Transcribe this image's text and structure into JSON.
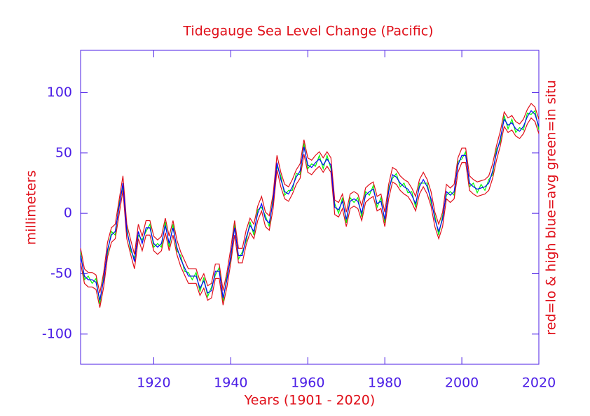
{
  "chart_data": {
    "type": "line",
    "title": "Tidegauge Sea Level Change (Pacific)",
    "x_label": "Years (1901 - 2020)",
    "y_label": "millimeters",
    "y2_label": "red=lo & high  blue=avg  green=in situ",
    "xlim": [
      1901,
      2020
    ],
    "xticks": [
      1920,
      1940,
      1960,
      1980,
      2000,
      2020
    ],
    "ylim": [
      -125,
      135
    ],
    "yticks": [
      -100,
      -50,
      0,
      50,
      100
    ],
    "x": [
      1901,
      1902,
      1903,
      1904,
      1905,
      1906,
      1907,
      1908,
      1909,
      1910,
      1911,
      1912,
      1913,
      1914,
      1915,
      1916,
      1917,
      1918,
      1919,
      1920,
      1921,
      1922,
      1923,
      1924,
      1925,
      1926,
      1927,
      1928,
      1929,
      1930,
      1931,
      1932,
      1933,
      1934,
      1935,
      1936,
      1937,
      1938,
      1939,
      1940,
      1941,
      1942,
      1943,
      1944,
      1945,
      1946,
      1947,
      1948,
      1949,
      1950,
      1951,
      1952,
      1953,
      1954,
      1955,
      1956,
      1957,
      1958,
      1959,
      1960,
      1961,
      1962,
      1963,
      1964,
      1965,
      1966,
      1967,
      1968,
      1969,
      1970,
      1971,
      1972,
      1973,
      1974,
      1975,
      1976,
      1977,
      1978,
      1979,
      1980,
      1981,
      1982,
      1983,
      1984,
      1985,
      1986,
      1987,
      1988,
      1989,
      1990,
      1991,
      1992,
      1993,
      1994,
      1995,
      1996,
      1997,
      1998,
      1999,
      2000,
      2001,
      2002,
      2003,
      2004,
      2005,
      2006,
      2007,
      2008,
      2009,
      2010,
      2011,
      2012,
      2013,
      2014,
      2015,
      2016,
      2017,
      2018,
      2019,
      2020
    ],
    "series": [
      {
        "color": "#00ff00",
        "values": [
          -32,
          -55,
          -52,
          -58,
          -54,
          -75,
          -52,
          -33,
          -15,
          -18,
          8,
          22,
          -12,
          -31,
          -37,
          -18,
          -22,
          -15,
          -9,
          -28,
          -25,
          -28,
          -7,
          -28,
          -9,
          -31,
          -35,
          -48,
          -49,
          -55,
          -49,
          -65,
          -53,
          -69,
          -61,
          -51,
          -45,
          -73,
          -52,
          -38,
          -9,
          -38,
          -32,
          -23,
          -7,
          -18,
          3,
          5,
          -2,
          -11,
          13,
          39,
          31,
          15,
          19,
          19,
          33,
          32,
          58,
          37,
          41,
          39,
          48,
          37,
          48,
          37,
          8,
          0,
          13,
          -8,
          13,
          9,
          13,
          -3,
          18,
          15,
          23,
          5,
          13,
          -8,
          21,
          29,
          33,
          22,
          25,
          17,
          18,
          5,
          25,
          25,
          25,
          9,
          -2,
          -18,
          -2,
          15,
          18,
          15,
          43,
          45,
          51,
          22,
          25,
          17,
          24,
          19,
          28,
          32,
          53,
          59,
          81,
          70,
          78,
          67,
          71,
          69,
          83,
          82,
          85,
          69
        ]
      },
      {
        "color": "#e0101a",
        "values": [
          -41,
          -58,
          -61,
          -61,
          -63,
          -78,
          -61,
          -36,
          -24,
          -21,
          -1,
          19,
          -21,
          -34,
          -46,
          -21,
          -31,
          -18,
          -18,
          -31,
          -34,
          -31,
          -16,
          -31,
          -18,
          -34,
          -44,
          -51,
          -58,
          -58,
          -58,
          -68,
          -62,
          -72,
          -70,
          -54,
          -54,
          -76,
          -61,
          -41,
          -18,
          -41,
          -41,
          -26,
          -16,
          -21,
          -6,
          2,
          -11,
          -14,
          4,
          36,
          22,
          12,
          10,
          16,
          24,
          29,
          49,
          34,
          32,
          36,
          39,
          34,
          39,
          34,
          -1,
          -3,
          4,
          -11,
          4,
          6,
          4,
          -6,
          9,
          12,
          14,
          2,
          4,
          -11,
          12,
          26,
          24,
          19,
          16,
          14,
          9,
          2,
          16,
          22,
          16,
          6,
          -11,
          -21,
          -11,
          12,
          9,
          12,
          34,
          42,
          42,
          19,
          16,
          14,
          15,
          16,
          19,
          29,
          44,
          56,
          72,
          67,
          69,
          64,
          62,
          66,
          74,
          79,
          76,
          66
        ]
      },
      {
        "color": "#e0101a",
        "values": [
          -29,
          -46,
          -49,
          -49,
          -51,
          -66,
          -49,
          -24,
          -12,
          -9,
          11,
          31,
          -9,
          -22,
          -34,
          -9,
          -19,
          -6,
          -6,
          -19,
          -22,
          -19,
          -4,
          -19,
          -6,
          -22,
          -32,
          -39,
          -46,
          -46,
          -46,
          -56,
          -50,
          -60,
          -58,
          -42,
          -42,
          -64,
          -49,
          -29,
          -6,
          -29,
          -29,
          -14,
          -4,
          -9,
          6,
          14,
          1,
          -2,
          16,
          48,
          34,
          24,
          22,
          28,
          36,
          41,
          61,
          46,
          44,
          48,
          51,
          46,
          51,
          46,
          11,
          9,
          16,
          1,
          16,
          18,
          16,
          6,
          21,
          24,
          26,
          14,
          16,
          1,
          24,
          38,
          36,
          31,
          28,
          26,
          21,
          14,
          28,
          34,
          28,
          18,
          1,
          -9,
          1,
          24,
          21,
          24,
          46,
          54,
          54,
          31,
          28,
          26,
          27,
          28,
          31,
          41,
          56,
          68,
          84,
          79,
          81,
          76,
          74,
          78,
          86,
          91,
          88,
          78
        ]
      },
      {
        "color": "#0000ff",
        "values": [
          -35,
          -52,
          -55,
          -55,
          -57,
          -72,
          -55,
          -30,
          -18,
          -15,
          5,
          25,
          -15,
          -28,
          -40,
          -15,
          -25,
          -12,
          -12,
          -25,
          -28,
          -25,
          -10,
          -25,
          -12,
          -28,
          -38,
          -45,
          -52,
          -52,
          -52,
          -62,
          -56,
          -66,
          -64,
          -48,
          -48,
          -70,
          -55,
          -35,
          -12,
          -35,
          -35,
          -20,
          -10,
          -15,
          0,
          8,
          -5,
          -8,
          10,
          42,
          28,
          18,
          16,
          22,
          30,
          35,
          55,
          40,
          38,
          42,
          45,
          40,
          45,
          40,
          5,
          3,
          10,
          -5,
          10,
          12,
          10,
          0,
          15,
          18,
          20,
          8,
          10,
          -5,
          18,
          32,
          30,
          25,
          22,
          20,
          15,
          8,
          22,
          28,
          22,
          12,
          -5,
          -15,
          -5,
          18,
          15,
          18,
          40,
          48,
          48,
          25,
          22,
          20,
          21,
          22,
          25,
          35,
          50,
          62,
          78,
          73,
          75,
          70,
          68,
          72,
          80,
          85,
          82,
          72
        ]
      }
    ]
  }
}
